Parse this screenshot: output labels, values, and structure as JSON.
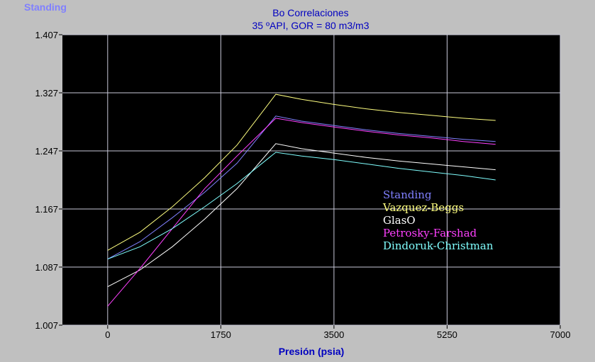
{
  "window_label": "Standing",
  "chart_data": {
    "type": "line",
    "title": "Bo Correlaciones",
    "subtitle": "35 ºAPI, GOR = 80 m3/m3",
    "xlabel": "Presión (psia)",
    "ylabel": "",
    "xlim": [
      -700,
      7000
    ],
    "ylim": [
      1.007,
      1.407
    ],
    "x_ticks": [
      0,
      1750,
      3500,
      5250,
      7000
    ],
    "x_tick_labels": [
      "0",
      "1750",
      "3500",
      "5250",
      "7000"
    ],
    "y_ticks": [
      1.007,
      1.087,
      1.167,
      1.247,
      1.327,
      1.407
    ],
    "y_tick_labels": [
      "1.007",
      "1.087",
      "1.167",
      "1.247",
      "1.327",
      "1.407"
    ],
    "grid": true,
    "plot_background": "#000000",
    "grid_color": "#c8c8d8",
    "legend_position": "center-right",
    "series": [
      {
        "name": "Standing",
        "color": "#8080ff",
        "x": [
          0,
          500,
          1000,
          1500,
          2000,
          2600,
          3000,
          3500,
          4000,
          4500,
          5000,
          5500,
          6000
        ],
        "y": [
          1.098,
          1.122,
          1.155,
          1.19,
          1.23,
          1.295,
          1.288,
          1.282,
          1.276,
          1.271,
          1.267,
          1.263,
          1.26
        ]
      },
      {
        "name": "Vazquez-Beggs",
        "color": "#ffff80",
        "x": [
          0,
          500,
          1000,
          1500,
          2000,
          2600,
          3000,
          3500,
          4000,
          4500,
          5000,
          5500,
          6000
        ],
        "y": [
          1.11,
          1.135,
          1.17,
          1.21,
          1.255,
          1.325,
          1.318,
          1.311,
          1.305,
          1.3,
          1.296,
          1.292,
          1.289
        ]
      },
      {
        "name": "GlasO",
        "color": "#ffffff",
        "x": [
          0,
          500,
          1000,
          1500,
          2000,
          2600,
          3000,
          3500,
          4000,
          4500,
          5000,
          5500,
          6000
        ],
        "y": [
          1.06,
          1.083,
          1.115,
          1.153,
          1.195,
          1.257,
          1.25,
          1.244,
          1.238,
          1.233,
          1.229,
          1.225,
          1.221
        ]
      },
      {
        "name": "Petrosky-Farshad",
        "color": "#ff40ff",
        "x": [
          0,
          500,
          1000,
          1500,
          2000,
          2600,
          3000,
          3500,
          4000,
          4500,
          5000,
          5500,
          6000
        ],
        "y": [
          1.033,
          1.085,
          1.14,
          1.195,
          1.24,
          1.292,
          1.286,
          1.28,
          1.274,
          1.269,
          1.265,
          1.26,
          1.256
        ]
      },
      {
        "name": "Dindoruk-Christman",
        "color": "#80ffff",
        "x": [
          0,
          500,
          1000,
          1500,
          2000,
          2600,
          3000,
          3500,
          4000,
          4500,
          5000,
          5500,
          6000
        ],
        "y": [
          1.098,
          1.115,
          1.14,
          1.17,
          1.202,
          1.245,
          1.24,
          1.235,
          1.229,
          1.223,
          1.218,
          1.213,
          1.207
        ]
      }
    ]
  }
}
